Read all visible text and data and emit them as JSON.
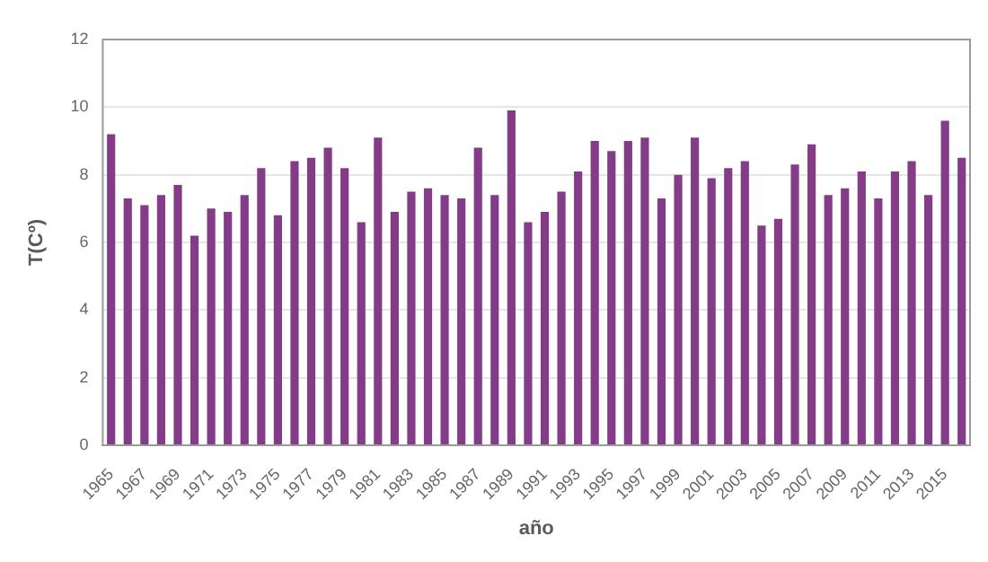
{
  "chart_data": {
    "type": "bar",
    "xlabel": "año",
    "ylabel": "T(Cº)",
    "categories": [
      "1965",
      null,
      "1967",
      null,
      "1969",
      null,
      "1971",
      null,
      "1973",
      null,
      "1975",
      null,
      "1977",
      null,
      "1979",
      null,
      "1981",
      null,
      "1983",
      null,
      "1985",
      null,
      "1987",
      null,
      "1989",
      null,
      "1991",
      null,
      "1993",
      null,
      "1995",
      null,
      "1997",
      null,
      "1999",
      null,
      "2001",
      null,
      "2003",
      null,
      "2005",
      null,
      "2007",
      null,
      "2009",
      null,
      "2011",
      null,
      "2013",
      null,
      "2015",
      null
    ],
    "values": [
      9.2,
      7.3,
      7.1,
      7.4,
      7.7,
      6.2,
      7.0,
      6.9,
      7.4,
      8.2,
      6.8,
      8.4,
      8.5,
      8.8,
      8.2,
      6.6,
      9.1,
      6.9,
      7.5,
      7.6,
      7.4,
      7.3,
      8.8,
      7.4,
      9.9,
      6.6,
      6.9,
      7.5,
      8.1,
      9.0,
      8.7,
      9.0,
      9.1,
      7.3,
      8.0,
      9.1,
      7.9,
      8.2,
      8.4,
      6.5,
      6.7,
      8.3,
      8.9,
      7.4,
      7.6,
      8.1,
      7.3,
      8.1,
      8.4,
      7.4,
      9.6,
      8.5
    ],
    "color": "#843c89",
    "ylim": [
      0,
      12
    ],
    "yticks": [
      0,
      2,
      4,
      6,
      8,
      10,
      12
    ],
    "grid": "y",
    "legend": false
  }
}
